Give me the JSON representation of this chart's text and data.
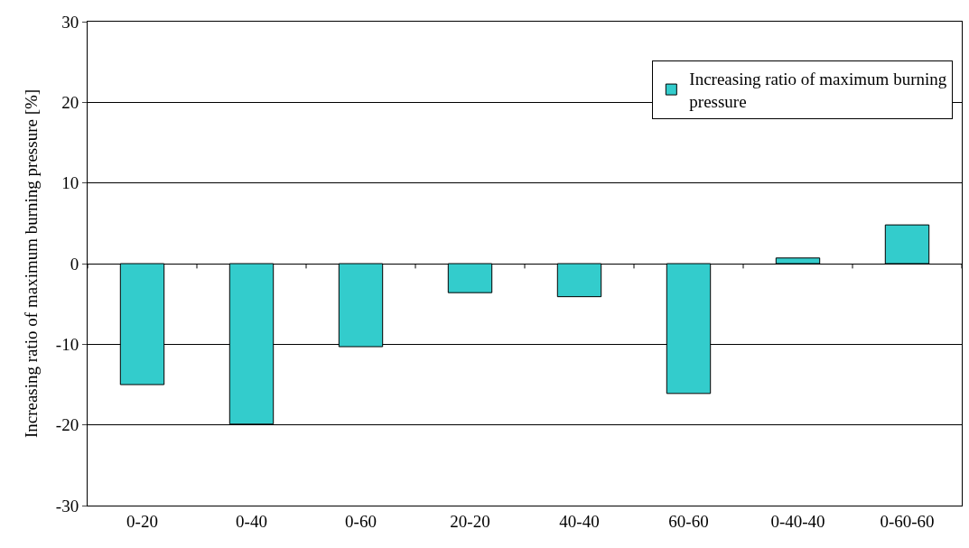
{
  "chart_data": {
    "type": "bar",
    "ylabel": "Increasing ratio of maximum burning pressure [%]",
    "categories": [
      "0-20",
      "0-40",
      "0-60",
      "20-20",
      "40-40",
      "60-60",
      "0-40-40",
      "0-60-60"
    ],
    "series": [
      {
        "name": "Increasing ratio of maximum burning pressure",
        "color": "#33cccc",
        "values": [
          -15.0,
          -19.9,
          -10.3,
          -3.6,
          -4.1,
          -16.1,
          0.7,
          4.8
        ]
      }
    ],
    "ylim": [
      -30,
      30
    ],
    "yticks": [
      -30,
      -20,
      -10,
      0,
      10,
      20,
      30
    ],
    "grid": "y",
    "legend": "top right"
  }
}
